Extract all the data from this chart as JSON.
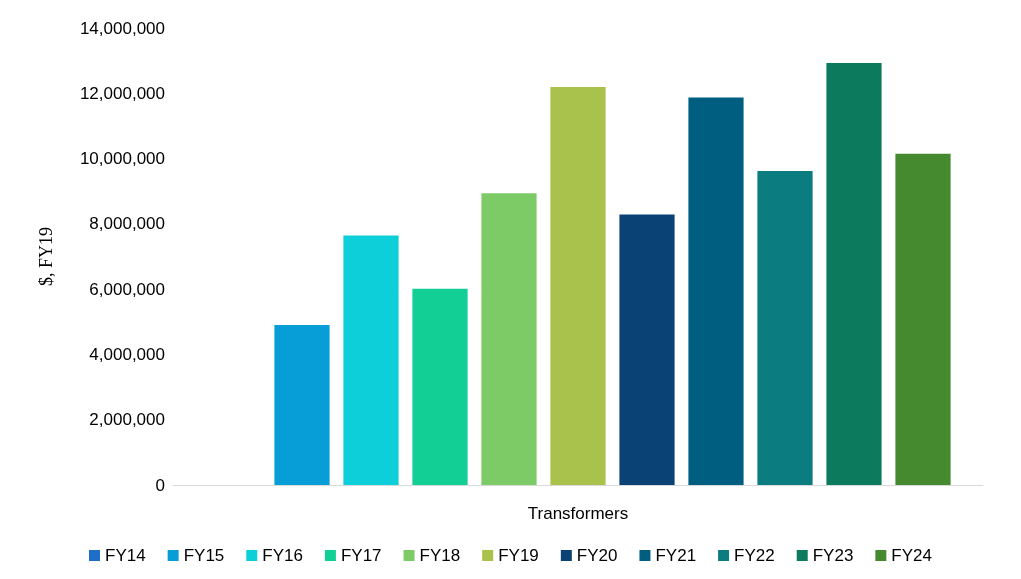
{
  "chart_data": {
    "type": "bar",
    "ylabel": "$, FY19",
    "categories": [
      "Transformers"
    ],
    "series": [
      {
        "name": "FY14",
        "color": "#1f6fc8",
        "values": [
          0
        ]
      },
      {
        "name": "FY15",
        "color": "#079ed8",
        "values": [
          4900000
        ]
      },
      {
        "name": "FY16",
        "color": "#0ccfd9",
        "values": [
          7640000
        ]
      },
      {
        "name": "FY17",
        "color": "#12cf96",
        "values": [
          6010000
        ]
      },
      {
        "name": "FY18",
        "color": "#7dcb66",
        "values": [
          8940000
        ]
      },
      {
        "name": "FY19",
        "color": "#a9c24c",
        "values": [
          12190000
        ]
      },
      {
        "name": "FY20",
        "color": "#0b4276",
        "values": [
          8290000
        ]
      },
      {
        "name": "FY21",
        "color": "#005f80",
        "values": [
          11870000
        ]
      },
      {
        "name": "FY22",
        "color": "#0b7c80",
        "values": [
          9620000
        ]
      },
      {
        "name": "FY23",
        "color": "#0c7a5c",
        "values": [
          12930000
        ]
      },
      {
        "name": "FY24",
        "color": "#468a2f",
        "values": [
          10150000
        ]
      }
    ],
    "ylim": [
      0,
      14000000
    ],
    "yticks": [
      0,
      {
        "value": 2000000,
        "label": "2,000,000"
      },
      {
        "value": 4000000,
        "label": "4,000,000"
      },
      {
        "value": 6000000,
        "label": "6,000,000"
      },
      {
        "value": 8000000,
        "label": "8,000,000"
      },
      {
        "value": 10000000,
        "label": "10,000,000"
      },
      {
        "value": 12000000,
        "label": "12,000,000"
      },
      {
        "value": 14000000,
        "label": "14,000,000"
      }
    ],
    "grid": false,
    "legend": "bottom"
  }
}
